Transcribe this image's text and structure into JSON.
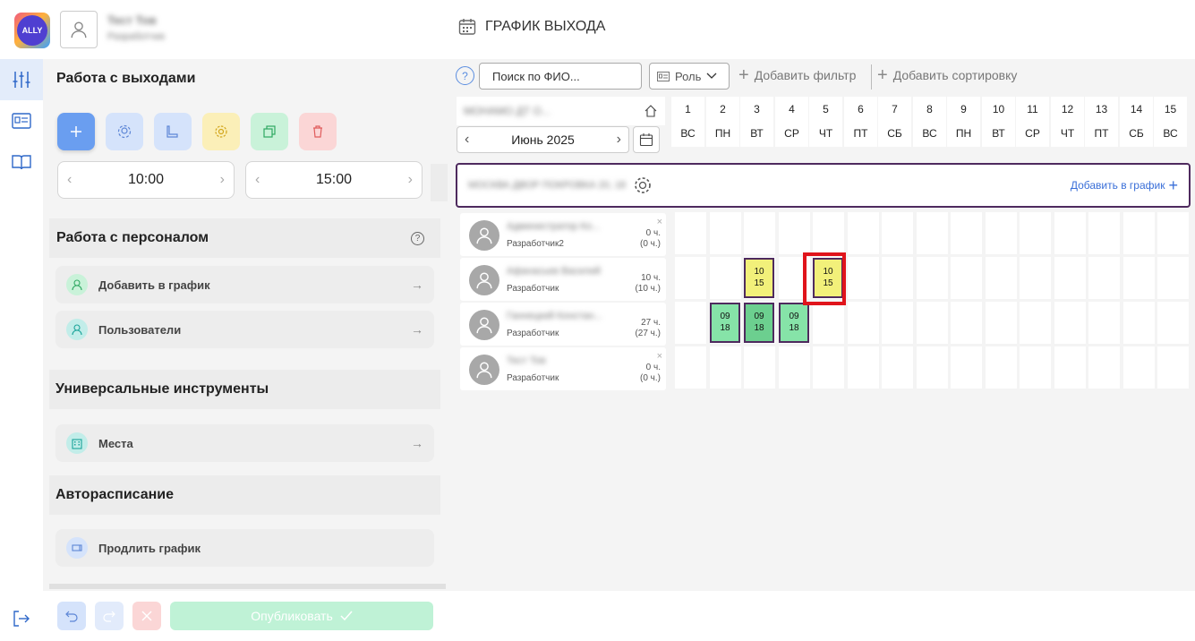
{
  "header": {
    "logo_text": "ALLY",
    "user_name": "Тест Тов",
    "user_role": "Разработчик",
    "page_title": "ГРАФИК ВЫХОДА"
  },
  "panel": {
    "section1_title": "Работа с выходами",
    "time_start": "10:00",
    "time_end": "15:00",
    "section2_title": "Работа с персоналом",
    "add_to_schedule": "Добавить в график",
    "users": "Пользователи",
    "section3_title": "Универсальные инструменты",
    "places": "Места",
    "section4_title": "Авторасписание",
    "extend_schedule": "Продлить график",
    "publish": "Опубликовать"
  },
  "toolbar": {
    "search_placeholder": "Поиск по ФИО...",
    "role": "Роль",
    "add_filter": "Добавить фильтр",
    "add_sort": "Добавить сортировку",
    "help": "?"
  },
  "calendar": {
    "org": "МОНАМО ДТ О...",
    "month": "Июнь 2025",
    "days": [
      {
        "n": "1",
        "d": "ВС"
      },
      {
        "n": "2",
        "d": "ПН"
      },
      {
        "n": "3",
        "d": "ВТ"
      },
      {
        "n": "4",
        "d": "СР"
      },
      {
        "n": "5",
        "d": "ЧТ"
      },
      {
        "n": "6",
        "d": "ПТ"
      },
      {
        "n": "7",
        "d": "СБ"
      },
      {
        "n": "8",
        "d": "ВС"
      },
      {
        "n": "9",
        "d": "ПН"
      },
      {
        "n": "10",
        "d": "ВТ"
      },
      {
        "n": "11",
        "d": "СР"
      },
      {
        "n": "12",
        "d": "ЧТ"
      },
      {
        "n": "13",
        "d": "ПТ"
      },
      {
        "n": "14",
        "d": "СБ"
      },
      {
        "n": "15",
        "d": "ВС"
      }
    ]
  },
  "group": {
    "name": "МОСКВА ДВОР ПОКРОВКА 20, 18",
    "add_label": "Добавить в график"
  },
  "employees": [
    {
      "name": "Администратор Ко...",
      "role": "Разработчик2",
      "hours": "0 ч.",
      "hours2": "(0 ч.)",
      "close": "×"
    },
    {
      "name": "Афанасьев Василий",
      "role": "Разработчик",
      "hours": "10 ч.",
      "hours2": "(10 ч.)",
      "close": ""
    },
    {
      "name": "Ганнецкий Констан...",
      "role": "Разработчик",
      "hours": "27 ч.",
      "hours2": "(27 ч.)",
      "close": ""
    },
    {
      "name": "Тест Тов",
      "role": "Разработчик",
      "hours": "0 ч.",
      "hours2": "(0 ч.)",
      "close": "×"
    }
  ],
  "shifts": [
    {
      "row": 1,
      "day": 3,
      "start": "10",
      "end": "15",
      "color": "yellow"
    },
    {
      "row": 1,
      "day": 5,
      "start": "10",
      "end": "15",
      "color": "yellow",
      "highlighted": true
    },
    {
      "row": 2,
      "day": 2,
      "start": "09",
      "end": "18",
      "color": "green"
    },
    {
      "row": 2,
      "day": 3,
      "start": "09",
      "end": "18",
      "color": "green2"
    },
    {
      "row": 2,
      "day": 4,
      "start": "09",
      "end": "18",
      "color": "green"
    }
  ],
  "colors": {
    "accent": "#3a6fd8",
    "shift_border": "#4e2a5e",
    "highlight": "#e0141b",
    "yellow_shift": "#f2f07a",
    "green_shift": "#86e3a8"
  }
}
